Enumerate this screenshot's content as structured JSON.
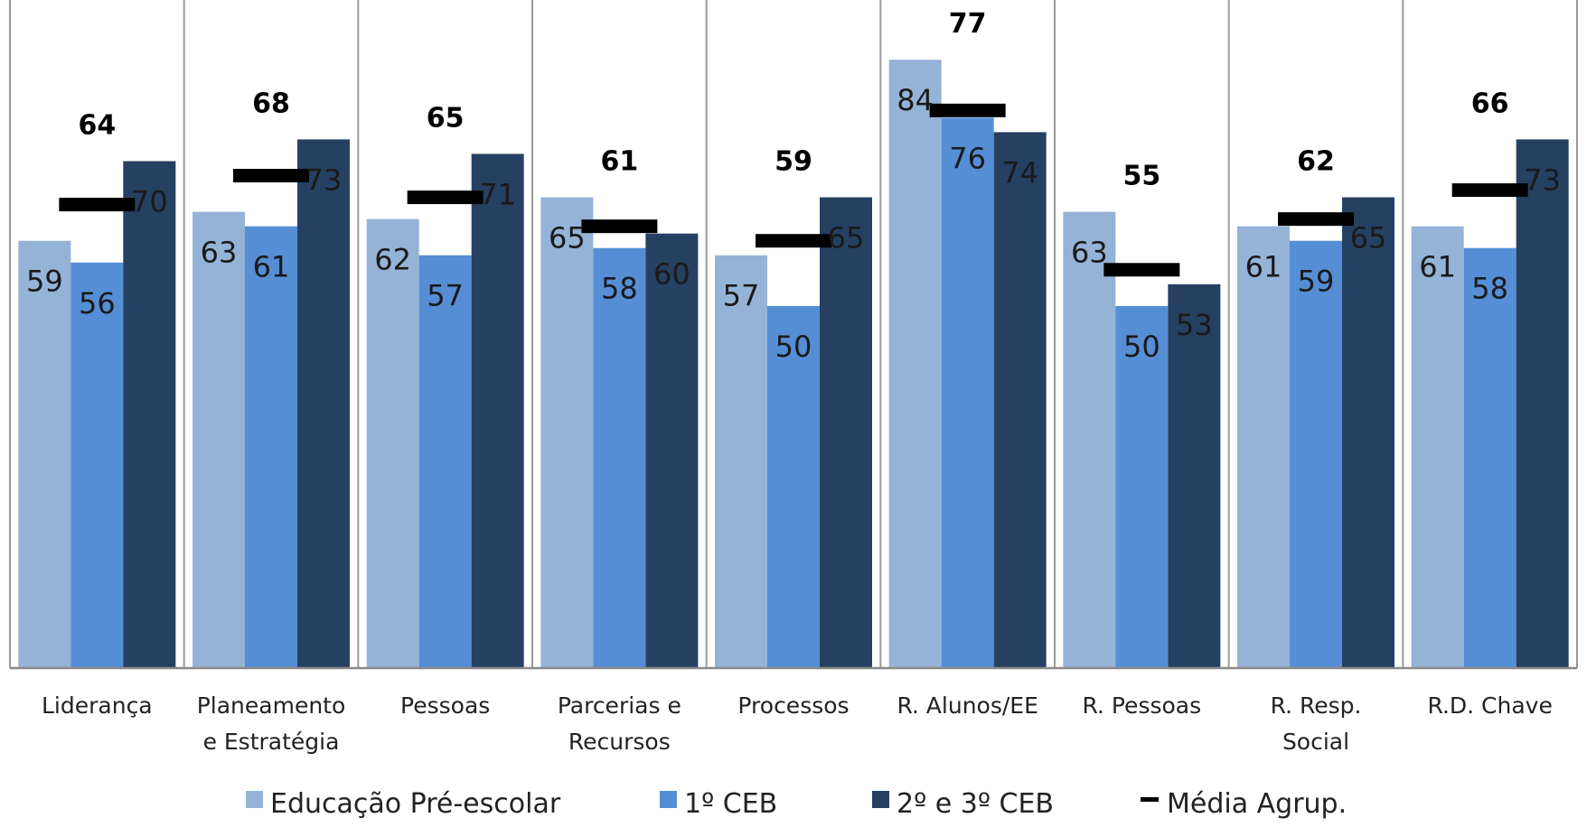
{
  "chart_data": {
    "type": "bar",
    "categories": [
      [
        "Liderança"
      ],
      [
        "Planeamento",
        "e Estratégia"
      ],
      [
        "Pessoas"
      ],
      [
        "Parcerias e",
        "Recursos"
      ],
      [
        "Processos"
      ],
      [
        "R. Alunos/EE"
      ],
      [
        "R. Pessoas"
      ],
      [
        "R. Resp.",
        "Social"
      ],
      [
        "R.D. Chave"
      ]
    ],
    "series": [
      {
        "name": "Educação Pré-escolar",
        "color": "#95B3D7",
        "values": [
          59,
          63,
          62,
          65,
          57,
          84,
          63,
          61,
          61
        ]
      },
      {
        "name": "1º CEB",
        "color": "#558ED5",
        "values": [
          56,
          61,
          57,
          58,
          50,
          76,
          50,
          59,
          58
        ]
      },
      {
        "name": "2º e 3º CEB",
        "color": "#254061",
        "values": [
          70,
          73,
          71,
          60,
          65,
          74,
          53,
          65,
          73
        ]
      }
    ],
    "mean": {
      "name": "Média Agrup.",
      "color": "#000000",
      "values": [
        64,
        68,
        65,
        61,
        59,
        77,
        55,
        62,
        66
      ]
    },
    "ylim": [
      0,
      91
    ],
    "grid": "vertical separators between categories",
    "legend": "bottom"
  }
}
